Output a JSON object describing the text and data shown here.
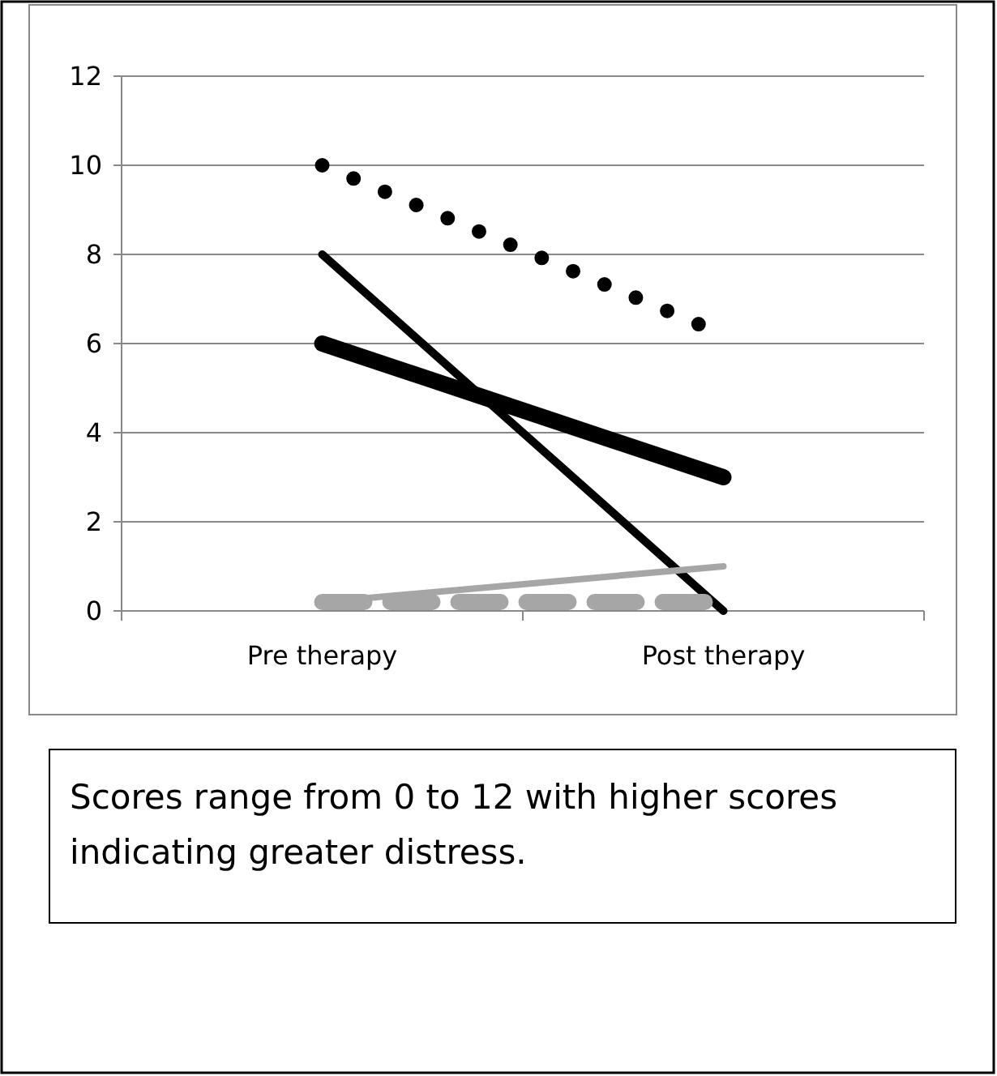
{
  "chart_data": {
    "type": "line",
    "categories": [
      "Pre therapy",
      "Post therapy"
    ],
    "ylim": [
      0,
      12
    ],
    "yticks": [
      0,
      2,
      4,
      6,
      8,
      10,
      12
    ],
    "grid": "y",
    "series": [
      {
        "color": "#000000",
        "values": [
          10,
          6.2
        ],
        "line_style": "dotted"
      },
      {
        "color": "#000000",
        "values": [
          8,
          0
        ],
        "line_style": "solid"
      },
      {
        "color": "#000000",
        "values": [
          6,
          3
        ],
        "line_style": "solid"
      },
      {
        "color": "#a6a6a6",
        "values": [
          0.2,
          1
        ],
        "line_style": "solid"
      },
      {
        "color": "#a6a6a6",
        "values": [
          0.2,
          0.2
        ],
        "line_style": "dashed"
      }
    ],
    "annotations": [
      "Scores range from 0 to 12 with higher scores indicating greater distress."
    ]
  }
}
